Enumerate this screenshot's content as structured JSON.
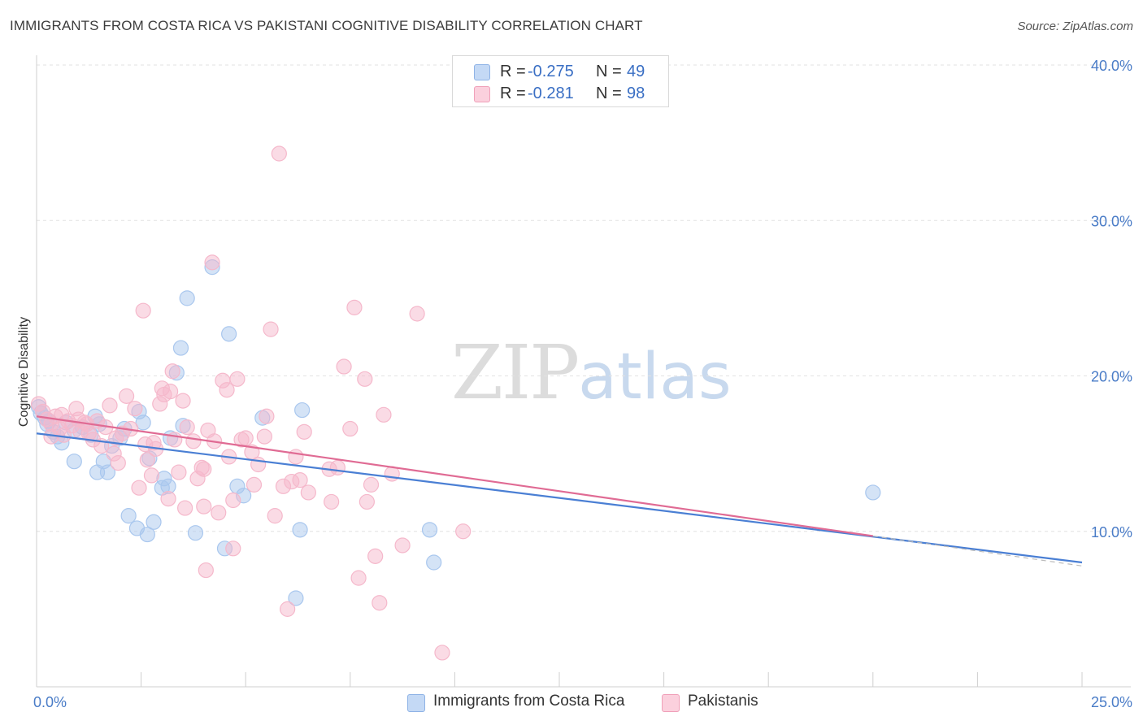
{
  "header": {
    "title": "IMMIGRANTS FROM COSTA RICA VS PAKISTANI COGNITIVE DISABILITY CORRELATION CHART",
    "source": "Source: ZipAtlas.com"
  },
  "watermark": {
    "zip": "ZIP",
    "atlas": "atlas"
  },
  "legend": {
    "rows": [
      {
        "r_label": "R =",
        "r_value": "-0.275",
        "n_label": "N =",
        "n_value": "49",
        "color": "#a9c7ee"
      },
      {
        "r_label": "R =",
        "r_value": "-0.281",
        "n_label": "N =",
        "n_value": "98",
        "color": "#f5b8cb"
      }
    ]
  },
  "bottom_legend": {
    "items": [
      {
        "label": "Immigrants from Costa Rica",
        "color": "#a9c7ee"
      },
      {
        "label": "Pakistanis",
        "color": "#f5b8cb"
      }
    ]
  },
  "chart_data": {
    "type": "scatter",
    "title": "IMMIGRANTS FROM COSTA RICA VS PAKISTANI COGNITIVE DISABILITY CORRELATION CHART",
    "xlabel": "",
    "ylabel": "Cognitive Disability",
    "xlim": [
      0,
      25
    ],
    "ylim": [
      0,
      40
    ],
    "x_tick_labels": [
      "0.0%",
      "25.0%"
    ],
    "y_ticks": [
      10,
      20,
      30,
      40
    ],
    "y_tick_labels": [
      "10.0%",
      "20.0%",
      "30.0%",
      "40.0%"
    ],
    "grid": true,
    "legend_position": "top-center",
    "series": [
      {
        "name": "Immigrants from Costa Rica",
        "color": "#4a7fd4",
        "fill": "#a9c7ee",
        "trend": {
          "x": [
            0,
            25
          ],
          "y": [
            16.3,
            8.0
          ],
          "style": "solid",
          "extend_dashed_to": 25
        },
        "points": [
          [
            0.05,
            18.0
          ],
          [
            0.1,
            17.6
          ],
          [
            0.2,
            17.3
          ],
          [
            0.25,
            16.9
          ],
          [
            0.3,
            17.1
          ],
          [
            0.4,
            16.4
          ],
          [
            0.5,
            16.1
          ],
          [
            0.6,
            15.7
          ],
          [
            0.7,
            17.0
          ],
          [
            0.9,
            16.5
          ],
          [
            1.1,
            16.7
          ],
          [
            1.3,
            16.2
          ],
          [
            1.4,
            17.4
          ],
          [
            1.5,
            16.9
          ],
          [
            0.9,
            14.5
          ],
          [
            1.45,
            13.8
          ],
          [
            1.7,
            13.8
          ],
          [
            1.6,
            14.5
          ],
          [
            1.8,
            15.5
          ],
          [
            2.0,
            16.0
          ],
          [
            2.1,
            16.6
          ],
          [
            2.2,
            11.0
          ],
          [
            2.4,
            10.2
          ],
          [
            2.45,
            17.7
          ],
          [
            2.55,
            17.0
          ],
          [
            2.65,
            9.8
          ],
          [
            2.7,
            14.7
          ],
          [
            2.8,
            10.6
          ],
          [
            3.0,
            12.8
          ],
          [
            3.05,
            13.4
          ],
          [
            3.15,
            12.9
          ],
          [
            3.2,
            16.0
          ],
          [
            3.35,
            20.2
          ],
          [
            3.45,
            21.8
          ],
          [
            3.5,
            16.8
          ],
          [
            3.6,
            25.0
          ],
          [
            3.8,
            9.9
          ],
          [
            4.2,
            27.0
          ],
          [
            4.5,
            8.9
          ],
          [
            4.6,
            22.7
          ],
          [
            4.8,
            12.9
          ],
          [
            4.95,
            12.3
          ],
          [
            5.4,
            17.3
          ],
          [
            6.2,
            5.7
          ],
          [
            6.3,
            10.1
          ],
          [
            6.35,
            17.8
          ],
          [
            9.4,
            10.1
          ],
          [
            9.5,
            8.0
          ],
          [
            20.0,
            12.5
          ]
        ]
      },
      {
        "name": "Pakistanis",
        "color": "#e06b94",
        "fill": "#f5b8cb",
        "trend": {
          "x": [
            0,
            20
          ],
          "y": [
            17.4,
            9.7
          ],
          "style": "solid"
        },
        "points": [
          [
            0.05,
            18.2
          ],
          [
            0.15,
            17.7
          ],
          [
            0.25,
            17.2
          ],
          [
            0.35,
            16.9
          ],
          [
            0.45,
            17.4
          ],
          [
            0.55,
            16.6
          ],
          [
            0.65,
            16.2
          ],
          [
            0.75,
            17.1
          ],
          [
            0.85,
            16.8
          ],
          [
            0.95,
            17.9
          ],
          [
            1.05,
            16.4
          ],
          [
            1.15,
            17.0
          ],
          [
            1.25,
            16.3
          ],
          [
            1.35,
            15.9
          ],
          [
            1.45,
            17.1
          ],
          [
            1.55,
            15.5
          ],
          [
            1.65,
            16.7
          ],
          [
            1.75,
            18.1
          ],
          [
            1.85,
            15.0
          ],
          [
            1.95,
            14.4
          ],
          [
            2.05,
            16.3
          ],
          [
            2.15,
            18.7
          ],
          [
            2.25,
            16.6
          ],
          [
            2.35,
            17.9
          ],
          [
            2.45,
            12.8
          ],
          [
            2.55,
            24.2
          ],
          [
            2.65,
            14.6
          ],
          [
            2.75,
            13.6
          ],
          [
            2.8,
            15.7
          ],
          [
            2.85,
            15.3
          ],
          [
            2.95,
            18.2
          ],
          [
            3.0,
            19.2
          ],
          [
            3.05,
            18.8
          ],
          [
            3.15,
            12.1
          ],
          [
            3.25,
            20.3
          ],
          [
            3.3,
            15.9
          ],
          [
            3.4,
            13.8
          ],
          [
            3.5,
            18.4
          ],
          [
            3.55,
            11.5
          ],
          [
            3.6,
            16.7
          ],
          [
            3.75,
            15.8
          ],
          [
            3.85,
            13.4
          ],
          [
            3.95,
            14.1
          ],
          [
            4.0,
            11.6
          ],
          [
            4.05,
            7.5
          ],
          [
            4.1,
            16.5
          ],
          [
            4.2,
            27.3
          ],
          [
            4.25,
            15.8
          ],
          [
            4.35,
            11.2
          ],
          [
            4.45,
            19.7
          ],
          [
            4.55,
            19.1
          ],
          [
            4.6,
            14.8
          ],
          [
            4.7,
            8.9
          ],
          [
            4.8,
            19.8
          ],
          [
            4.9,
            15.9
          ],
          [
            5.0,
            16.0
          ],
          [
            5.15,
            15.1
          ],
          [
            5.3,
            14.3
          ],
          [
            5.45,
            16.1
          ],
          [
            5.5,
            17.4
          ],
          [
            5.6,
            23.0
          ],
          [
            5.7,
            11.0
          ],
          [
            5.8,
            34.3
          ],
          [
            5.9,
            12.9
          ],
          [
            6.0,
            5.0
          ],
          [
            6.1,
            13.2
          ],
          [
            6.2,
            14.8
          ],
          [
            6.3,
            13.3
          ],
          [
            6.4,
            16.4
          ],
          [
            7.05,
            11.9
          ],
          [
            7.2,
            14.1
          ],
          [
            7.35,
            20.6
          ],
          [
            7.5,
            16.6
          ],
          [
            7.6,
            24.4
          ],
          [
            7.7,
            7.0
          ],
          [
            7.85,
            19.8
          ],
          [
            7.9,
            11.9
          ],
          [
            8.1,
            8.4
          ],
          [
            8.2,
            5.4
          ],
          [
            8.3,
            17.5
          ],
          [
            8.5,
            13.7
          ],
          [
            8.75,
            9.1
          ],
          [
            9.1,
            24.0
          ],
          [
            9.7,
            2.2
          ],
          [
            10.2,
            10.0
          ],
          [
            1.0,
            17.2
          ],
          [
            1.2,
            16.9
          ],
          [
            0.35,
            16.1
          ],
          [
            0.6,
            17.5
          ],
          [
            1.9,
            16.0
          ],
          [
            2.6,
            15.6
          ],
          [
            3.2,
            19.0
          ],
          [
            4.0,
            14.0
          ],
          [
            4.7,
            12.0
          ],
          [
            5.2,
            13.0
          ],
          [
            6.5,
            12.5
          ],
          [
            7.0,
            14.0
          ],
          [
            8.0,
            13.0
          ]
        ]
      }
    ]
  }
}
